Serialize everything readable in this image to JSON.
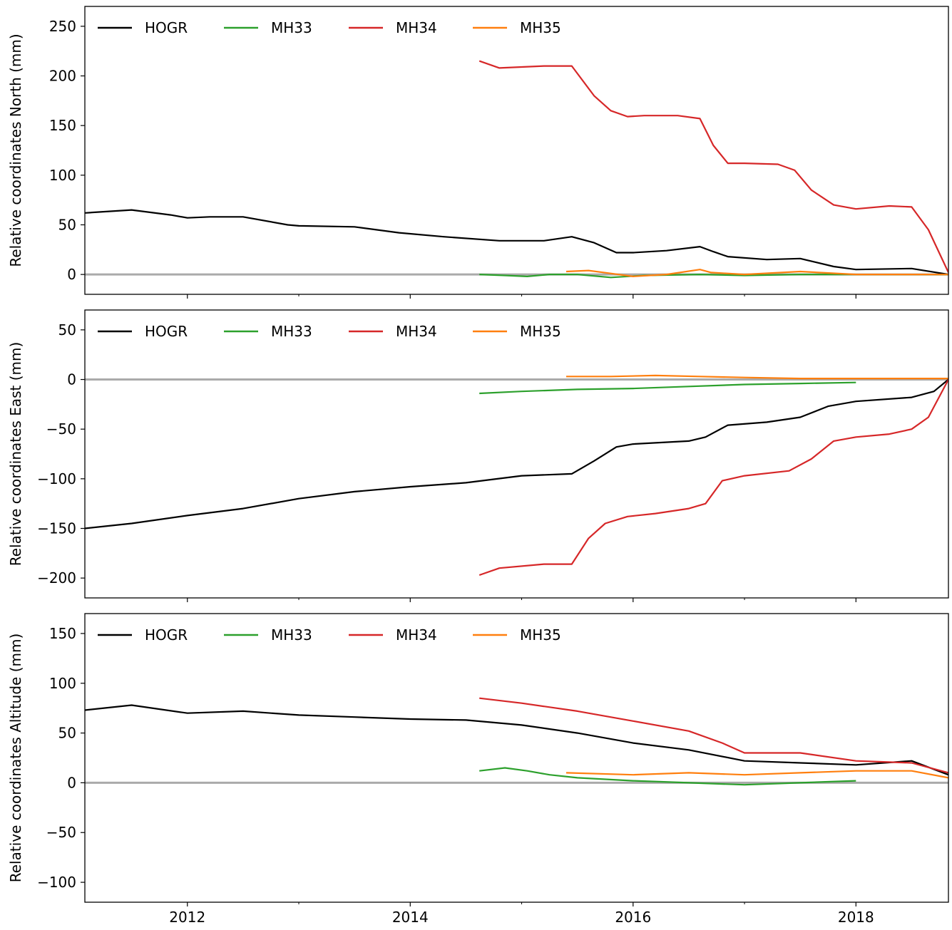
{
  "legend_labels": [
    "HOGR",
    "MH33",
    "MH34",
    "MH35"
  ],
  "x_tick_labels": [
    "2012",
    "2014",
    "2016",
    "2018"
  ],
  "colors": {
    "HOGR": "#000000",
    "MH33": "#2ca02c",
    "MH34": "#d62728",
    "MH35": "#ff7f0e",
    "zero_line": "#aaaaaa"
  },
  "chart_data": [
    {
      "type": "line",
      "title": "",
      "xlabel": "",
      "ylabel": "Relative coordinates North (mm)",
      "xlim": [
        2011.08,
        2018.83
      ],
      "ylim": [
        -20,
        270
      ],
      "yticks": [
        0,
        50,
        100,
        150,
        200,
        250
      ],
      "ytick_labels": [
        "0",
        "50",
        "100",
        "150",
        "200",
        "250"
      ],
      "legend": "top-left, single row",
      "reference_line": 0,
      "series": [
        {
          "name": "HOGR",
          "x": [
            2011.08,
            2011.5,
            2011.85,
            2012.0,
            2012.2,
            2012.5,
            2012.9,
            2013.0,
            2013.5,
            2013.9,
            2014.3,
            2014.8,
            2015.2,
            2015.45,
            2015.65,
            2015.85,
            2016.0,
            2016.3,
            2016.6,
            2016.72,
            2016.85,
            2017.2,
            2017.5,
            2017.8,
            2018.0,
            2018.5,
            2018.83
          ],
          "y": [
            62,
            65,
            60,
            57,
            58,
            58,
            50,
            49,
            48,
            42,
            38,
            34,
            34,
            38,
            32,
            22,
            22,
            24,
            28,
            23,
            18,
            15,
            16,
            8,
            5,
            6,
            0
          ]
        },
        {
          "name": "MH33",
          "x": [
            2014.62,
            2014.85,
            2015.05,
            2015.25,
            2015.5,
            2015.8,
            2016.1,
            2016.6,
            2017.0,
            2017.5,
            2018.0,
            2018.5,
            2018.83
          ],
          "y": [
            0,
            -1,
            -2,
            0,
            0,
            -3,
            -1,
            0,
            -1,
            0,
            0,
            0,
            0
          ]
        },
        {
          "name": "MH34",
          "x": [
            2014.62,
            2014.8,
            2015.2,
            2015.45,
            2015.65,
            2015.8,
            2015.95,
            2016.1,
            2016.4,
            2016.6,
            2016.72,
            2016.85,
            2017.0,
            2017.3,
            2017.45,
            2017.6,
            2017.8,
            2018.0,
            2018.3,
            2018.5,
            2018.65,
            2018.83
          ],
          "y": [
            215,
            208,
            210,
            210,
            180,
            165,
            159,
            160,
            160,
            157,
            130,
            112,
            112,
            111,
            105,
            85,
            70,
            66,
            69,
            68,
            45,
            2
          ]
        },
        {
          "name": "MH35",
          "x": [
            2015.4,
            2015.6,
            2015.8,
            2016.0,
            2016.3,
            2016.6,
            2016.7,
            2017.0,
            2017.5,
            2018.0,
            2018.5,
            2018.83
          ],
          "y": [
            3,
            4,
            1,
            -2,
            0,
            5,
            2,
            0,
            3,
            0,
            0,
            0
          ]
        }
      ]
    },
    {
      "type": "line",
      "title": "",
      "xlabel": "",
      "ylabel": "Relative coordinates East (mm)",
      "xlim": [
        2011.08,
        2018.83
      ],
      "ylim": [
        -220,
        70
      ],
      "yticks": [
        -200,
        -150,
        -100,
        -50,
        0,
        50
      ],
      "ytick_labels": [
        "−200",
        "−150",
        "−100",
        "−50",
        "0",
        "50"
      ],
      "legend": "top-left, single row",
      "reference_line": 0,
      "series": [
        {
          "name": "HOGR",
          "x": [
            2011.08,
            2011.5,
            2012.0,
            2012.5,
            2013.0,
            2013.5,
            2014.0,
            2014.5,
            2015.0,
            2015.45,
            2015.65,
            2015.85,
            2016.0,
            2016.5,
            2016.65,
            2016.85,
            2017.2,
            2017.5,
            2017.75,
            2018.0,
            2018.5,
            2018.7,
            2018.83
          ],
          "y": [
            -150,
            -145,
            -137,
            -130,
            -120,
            -113,
            -108,
            -104,
            -97,
            -95,
            -82,
            -68,
            -65,
            -62,
            -58,
            -46,
            -43,
            -38,
            -27,
            -22,
            -18,
            -12,
            0
          ]
        },
        {
          "name": "MH33",
          "x": [
            2014.62,
            2015.0,
            2015.5,
            2016.0,
            2016.5,
            2017.0,
            2017.5,
            2018.0
          ],
          "y": [
            -14,
            -12,
            -10,
            -9,
            -7,
            -5,
            -4,
            -3
          ]
        },
        {
          "name": "MH34",
          "x": [
            2014.62,
            2014.8,
            2015.2,
            2015.45,
            2015.6,
            2015.75,
            2015.95,
            2016.2,
            2016.5,
            2016.65,
            2016.8,
            2017.0,
            2017.4,
            2017.6,
            2017.8,
            2018.0,
            2018.3,
            2018.5,
            2018.65,
            2018.83
          ],
          "y": [
            -197,
            -190,
            -186,
            -186,
            -160,
            -145,
            -138,
            -135,
            -130,
            -125,
            -102,
            -97,
            -92,
            -80,
            -62,
            -58,
            -55,
            -50,
            -38,
            0
          ]
        },
        {
          "name": "MH35",
          "x": [
            2015.4,
            2015.8,
            2016.2,
            2016.6,
            2017.0,
            2017.5,
            2018.0,
            2018.5,
            2018.83
          ],
          "y": [
            3,
            3,
            4,
            3,
            2,
            1,
            1,
            1,
            1
          ]
        }
      ]
    },
    {
      "type": "line",
      "title": "",
      "xlabel": "",
      "ylabel": "Relative coordinates Altitude (mm)",
      "xlim": [
        2011.08,
        2018.83
      ],
      "ylim": [
        -120,
        170
      ],
      "yticks": [
        -100,
        -50,
        0,
        50,
        100,
        150
      ],
      "ytick_labels": [
        "−100",
        "−50",
        "0",
        "50",
        "100",
        "150"
      ],
      "legend": "top-left, single row",
      "reference_line": 0,
      "series": [
        {
          "name": "HOGR",
          "x": [
            2011.08,
            2011.5,
            2012.0,
            2012.5,
            2013.0,
            2013.5,
            2014.0,
            2014.5,
            2015.0,
            2015.5,
            2016.0,
            2016.5,
            2017.0,
            2017.5,
            2018.0,
            2018.5,
            2018.83
          ],
          "y": [
            73,
            78,
            70,
            72,
            68,
            66,
            64,
            63,
            58,
            50,
            40,
            33,
            22,
            20,
            18,
            22,
            8
          ]
        },
        {
          "name": "MH33",
          "x": [
            2014.62,
            2014.85,
            2015.05,
            2015.25,
            2015.5,
            2016.0,
            2016.5,
            2017.0,
            2017.5,
            2018.0
          ],
          "y": [
            12,
            15,
            12,
            8,
            5,
            2,
            0,
            -2,
            0,
            2
          ]
        },
        {
          "name": "MH34",
          "x": [
            2014.62,
            2015.0,
            2015.5,
            2016.0,
            2016.5,
            2016.8,
            2017.0,
            2017.5,
            2018.0,
            2018.5,
            2018.83
          ],
          "y": [
            85,
            80,
            72,
            62,
            52,
            40,
            30,
            30,
            22,
            20,
            10
          ]
        },
        {
          "name": "MH35",
          "x": [
            2015.4,
            2016.0,
            2016.5,
            2017.0,
            2017.5,
            2018.0,
            2018.5,
            2018.83
          ],
          "y": [
            10,
            8,
            10,
            8,
            10,
            12,
            12,
            5
          ]
        }
      ]
    }
  ]
}
